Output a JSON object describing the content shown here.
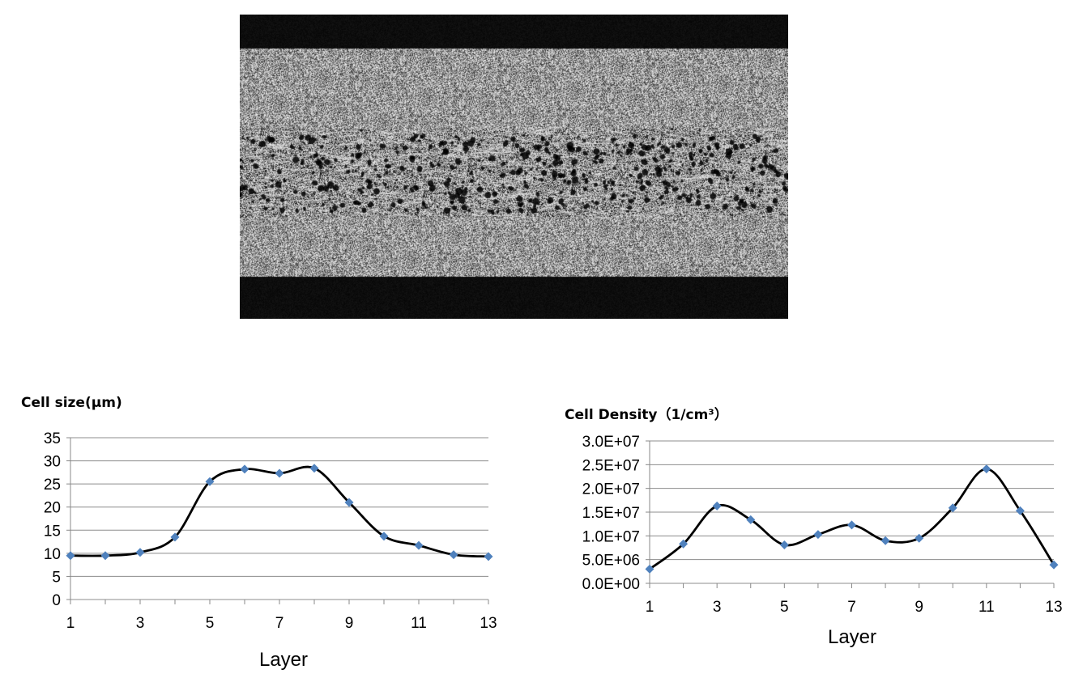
{
  "figure": {
    "micrograph": {
      "kind": "grayscale foam cross-section micrograph",
      "colors": {
        "band": "#0a0a0a",
        "texture": "#cfcfcf"
      }
    }
  },
  "colors": {
    "line": "#000000",
    "marker": "#4f81bd",
    "grid": "#8c8c8c"
  },
  "chart_data": [
    {
      "type": "line",
      "title": "Cell size(μm)",
      "xlabel": "Layer",
      "ylabel": "",
      "x": [
        1,
        2,
        3,
        4,
        5,
        6,
        7,
        8,
        9,
        10,
        11,
        12,
        13
      ],
      "x_ticks": [
        "1",
        "3",
        "5",
        "7",
        "9",
        "11",
        "13"
      ],
      "y_ticks": [
        "0",
        "5",
        "10",
        "15",
        "20",
        "25",
        "30",
        "35"
      ],
      "ylim": [
        0,
        35
      ],
      "grid": true,
      "smooth": true,
      "series": [
        {
          "values": [
            9.5,
            9.5,
            10.2,
            13.5,
            25.5,
            28.2,
            27.3,
            28.4,
            21.0,
            13.7,
            11.7,
            9.7,
            9.3
          ]
        }
      ]
    },
    {
      "type": "line",
      "title": "Cell Density（1/cm³）",
      "xlabel": "Layer",
      "ylabel": "",
      "x": [
        1,
        2,
        3,
        4,
        5,
        6,
        7,
        8,
        9,
        10,
        11,
        12,
        13
      ],
      "x_ticks": [
        "1",
        "3",
        "5",
        "7",
        "9",
        "11",
        "13"
      ],
      "y_ticks": [
        "0.0E+00",
        "5.0E+06",
        "1.0E+07",
        "1.5E+07",
        "2.0E+07",
        "2.5E+07",
        "3.0E+07"
      ],
      "ylim": [
        0,
        30000000
      ],
      "grid": true,
      "smooth": true,
      "series": [
        {
          "values": [
            3000000,
            8300000,
            16300000,
            13400000,
            8100000,
            10300000,
            12300000,
            9000000,
            9500000,
            15900000,
            24100000,
            15300000,
            3900000
          ]
        }
      ]
    }
  ]
}
